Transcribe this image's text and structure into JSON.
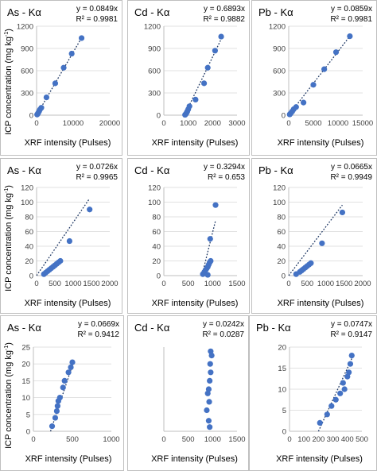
{
  "figure": {
    "x_axis_label": "XRF intensity (Pulses)",
    "y_axis_label_main": "ICP concentration (mg kg",
    "y_axis_label_sup": "-1",
    "y_axis_label_end": ")"
  },
  "colors": {
    "point": "#4472C4",
    "trend": "#1F3864",
    "grid": "#D9D9D9",
    "axis": "#BFBFBF",
    "panel_border": "#BFBFBF",
    "text": "#000000",
    "tick_text": "#404040"
  },
  "chart_data": [
    {
      "type": "scatter",
      "title": "As - Kα",
      "equation": "y = 0.0849x",
      "r2_text": "R² = 0.9981",
      "xlim": [
        0,
        20000
      ],
      "ylim": [
        0,
        1200
      ],
      "xticks": [
        0,
        10000,
        20000
      ],
      "yticks": [
        0,
        300,
        600,
        900,
        1200
      ],
      "xtick_labels": [
        "0",
        "10000",
        "20000"
      ],
      "ytick_labels": [
        "0",
        "300",
        "600",
        "900",
        "1200"
      ],
      "trendline": {
        "x": [
          0,
          12300
        ],
        "y": [
          0,
          1044
        ]
      },
      "points": [
        [
          150,
          8
        ],
        [
          300,
          18
        ],
        [
          500,
          35
        ],
        [
          700,
          55
        ],
        [
          900,
          75
        ],
        [
          1300,
          100
        ],
        [
          2700,
          240
        ],
        [
          5100,
          430
        ],
        [
          7400,
          640
        ],
        [
          9600,
          830
        ],
        [
          12300,
          1040
        ]
      ]
    },
    {
      "type": "scatter",
      "title": "Cd - Kα",
      "equation": "y = 0.6893x",
      "r2_text": "R² = 0.9882",
      "xlim": [
        0,
        3000
      ],
      "ylim": [
        0,
        1200
      ],
      "xticks": [
        0,
        1000,
        2000,
        3000
      ],
      "yticks": [
        0,
        300,
        600,
        900,
        1200
      ],
      "xtick_labels": [
        "0",
        "1000",
        "2000",
        "3000"
      ],
      "ytick_labels": [
        "0",
        "300",
        "600",
        "900",
        "1200"
      ],
      "trendline": {
        "x": [
          850,
          2400
        ],
        "y": [
          0,
          1060
        ]
      },
      "points": [
        [
          870,
          5
        ],
        [
          900,
          15
        ],
        [
          930,
          30
        ],
        [
          960,
          50
        ],
        [
          1000,
          80
        ],
        [
          1050,
          120
        ],
        [
          1300,
          210
        ],
        [
          1650,
          430
        ],
        [
          1800,
          640
        ],
        [
          2100,
          870
        ],
        [
          2350,
          1060
        ]
      ]
    },
    {
      "type": "scatter",
      "title": "Pb - Kα",
      "equation": "y = 0.0859x",
      "r2_text": "R² = 0.9981",
      "xlim": [
        0,
        15000
      ],
      "ylim": [
        0,
        1200
      ],
      "xticks": [
        0,
        5000,
        10000,
        15000
      ],
      "yticks": [
        0,
        300,
        600,
        900,
        1200
      ],
      "xtick_labels": [
        "0",
        "5000",
        "10000",
        "15000"
      ],
      "ytick_labels": [
        "0",
        "300",
        "600",
        "900",
        "1200"
      ],
      "trendline": {
        "x": [
          0,
          12400
        ],
        "y": [
          0,
          1065
        ]
      },
      "points": [
        [
          200,
          10
        ],
        [
          400,
          25
        ],
        [
          700,
          50
        ],
        [
          1000,
          80
        ],
        [
          1500,
          110
        ],
        [
          3000,
          170
        ],
        [
          5000,
          410
        ],
        [
          7200,
          620
        ],
        [
          9600,
          850
        ],
        [
          12400,
          1065
        ]
      ]
    },
    {
      "type": "scatter",
      "title": "As - Kα",
      "equation": "y = 0.0726x",
      "r2_text": "R² = 0.9965",
      "xlim": [
        0,
        2000
      ],
      "ylim": [
        0,
        120
      ],
      "xticks": [
        0,
        500,
        1000,
        1500,
        2000
      ],
      "yticks": [
        0,
        20,
        40,
        60,
        80,
        100,
        120
      ],
      "xtick_labels": [
        "0",
        "500",
        "1000",
        "1500",
        "2000"
      ],
      "ytick_labels": [
        "0",
        "20",
        "40",
        "60",
        "80",
        "100",
        "120"
      ],
      "trendline": {
        "x": [
          0,
          1450
        ],
        "y": [
          0,
          105
        ]
      },
      "points": [
        [
          200,
          2
        ],
        [
          250,
          4
        ],
        [
          300,
          6
        ],
        [
          350,
          8
        ],
        [
          400,
          10
        ],
        [
          450,
          12
        ],
        [
          500,
          14
        ],
        [
          550,
          16
        ],
        [
          600,
          18
        ],
        [
          650,
          20
        ],
        [
          900,
          47
        ],
        [
          1450,
          90
        ]
      ]
    },
    {
      "type": "scatter",
      "title": "Cd - Kα",
      "equation": "y = 0.3294x",
      "r2_text": "R² = 0.653",
      "xlim": [
        0,
        1500
      ],
      "ylim": [
        0,
        120
      ],
      "xticks": [
        0,
        500,
        1000,
        1500
      ],
      "yticks": [
        0,
        20,
        40,
        60,
        80,
        100,
        120
      ],
      "xtick_labels": [
        "0",
        "500",
        "1000",
        "1500"
      ],
      "ytick_labels": [
        "0",
        "20",
        "40",
        "60",
        "80",
        "100",
        "120"
      ],
      "trendline": {
        "x": [
          780,
          1060
        ],
        "y": [
          0,
          75
        ]
      },
      "points": [
        [
          800,
          2
        ],
        [
          830,
          5
        ],
        [
          860,
          8
        ],
        [
          880,
          10
        ],
        [
          900,
          12
        ],
        [
          920,
          15
        ],
        [
          940,
          18
        ],
        [
          960,
          20
        ],
        [
          900,
          1
        ],
        [
          950,
          50
        ],
        [
          1060,
          96
        ]
      ]
    },
    {
      "type": "scatter",
      "title": "Pb - Kα",
      "equation": "y = 0.0665x",
      "r2_text": "R² = 0.9949",
      "xlim": [
        0,
        2000
      ],
      "ylim": [
        0,
        120
      ],
      "xticks": [
        0,
        500,
        1000,
        1500,
        2000
      ],
      "yticks": [
        0,
        20,
        40,
        60,
        80,
        100,
        120
      ],
      "xtick_labels": [
        "0",
        "500",
        "1000",
        "1500",
        "2000"
      ],
      "ytick_labels": [
        "0",
        "20",
        "40",
        "60",
        "80",
        "100",
        "120"
      ],
      "trendline": {
        "x": [
          0,
          1450
        ],
        "y": [
          0,
          96
        ]
      },
      "points": [
        [
          200,
          2
        ],
        [
          300,
          5
        ],
        [
          350,
          7
        ],
        [
          400,
          9
        ],
        [
          450,
          11
        ],
        [
          500,
          13
        ],
        [
          550,
          15
        ],
        [
          600,
          17
        ],
        [
          900,
          44
        ],
        [
          1450,
          86
        ]
      ]
    },
    {
      "type": "scatter",
      "title": "As - Kα",
      "equation": "y = 0.0669x",
      "r2_text": "R² = 0.9412",
      "xlim": [
        0,
        1000
      ],
      "ylim": [
        0,
        25
      ],
      "xticks": [
        0,
        500,
        1000
      ],
      "yticks": [
        0,
        5,
        10,
        15,
        20,
        25
      ],
      "xtick_labels": [
        "0",
        "500",
        "1000"
      ],
      "ytick_labels": [
        "0",
        "5",
        "10",
        "15",
        "20",
        "25"
      ],
      "trendline": {
        "x": [
          220,
          520
        ],
        "y": [
          0,
          21
        ]
      },
      "points": [
        [
          240,
          1.5
        ],
        [
          280,
          4
        ],
        [
          300,
          6
        ],
        [
          310,
          7.5
        ],
        [
          320,
          9
        ],
        [
          340,
          10
        ],
        [
          380,
          13
        ],
        [
          400,
          15
        ],
        [
          450,
          17.5
        ],
        [
          480,
          19
        ],
        [
          500,
          20.5
        ]
      ]
    },
    {
      "type": "scatter",
      "title": "Cd - Kα",
      "equation": "y = 0.0242x",
      "r2_text": "R² = 0.0287",
      "xlim": [
        0,
        1500
      ],
      "ylim": [
        0,
        20
      ],
      "xticks": [
        0,
        500,
        1000,
        1500
      ],
      "yticks": [],
      "xtick_labels": [
        "0",
        "500",
        "1000",
        "1500"
      ],
      "ytick_labels": [],
      "trendline": null,
      "points": [
        [
          940,
          1
        ],
        [
          920,
          2.5
        ],
        [
          880,
          5
        ],
        [
          930,
          7
        ],
        [
          900,
          9
        ],
        [
          920,
          10
        ],
        [
          940,
          12
        ],
        [
          960,
          14
        ],
        [
          950,
          16
        ],
        [
          980,
          18
        ],
        [
          960,
          19
        ]
      ]
    },
    {
      "type": "scatter",
      "title": "Pb - Kα",
      "equation": "y = 0.0747x",
      "r2_text": "R² = 0.9147",
      "xlim": [
        0,
        500
      ],
      "ylim": [
        0,
        20
      ],
      "xticks": [
        0,
        100,
        200,
        300,
        400,
        500
      ],
      "yticks": [
        0,
        5,
        10,
        15,
        20
      ],
      "xtick_labels": [
        "0",
        "100",
        "200",
        "300",
        "400",
        "500"
      ],
      "ytick_labels": [
        "0",
        "5",
        "10",
        "15",
        "20"
      ],
      "trendline": {
        "x": [
          200,
          440
        ],
        "y": [
          0,
          18
        ]
      },
      "points": [
        [
          210,
          2
        ],
        [
          260,
          4
        ],
        [
          290,
          6
        ],
        [
          320,
          7.5
        ],
        [
          350,
          9
        ],
        [
          370,
          11.5
        ],
        [
          380,
          10
        ],
        [
          400,
          13
        ],
        [
          410,
          14
        ],
        [
          420,
          16
        ],
        [
          430,
          18
        ]
      ]
    }
  ]
}
